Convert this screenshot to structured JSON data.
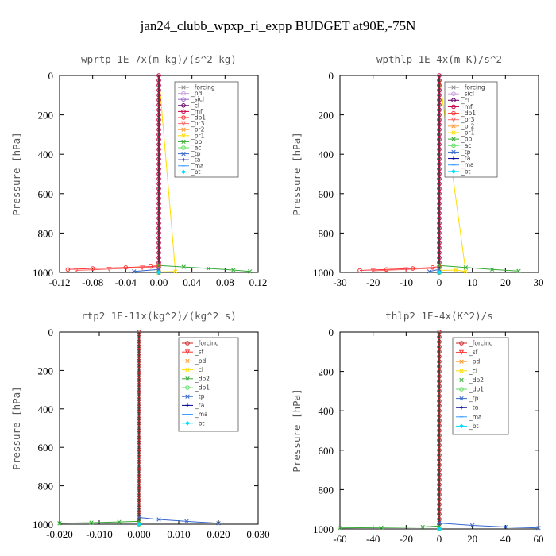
{
  "figure_title": "jan24_clubb_wpxp_ri_expp  BUDGET at90E,-75N",
  "chart_data": [
    {
      "type": "line",
      "title": "wprtp  1E-7x(m kg)/(s^2 kg)",
      "ylabel": "Pressure [hPa]",
      "xlim": [
        -0.12,
        0.12
      ],
      "ylim": [
        1000,
        0
      ],
      "xticks": [
        "-0.12",
        "-0.08",
        "-0.04",
        "0.00",
        "0.04",
        "0.08",
        "0.12"
      ],
      "xtick_values": [
        -0.12,
        -0.08,
        -0.04,
        0.0,
        0.04,
        0.08,
        0.12
      ],
      "yticks": [
        "0",
        "200",
        "400",
        "600",
        "800",
        "1000"
      ],
      "ytick_values": [
        0,
        200,
        400,
        600,
        800,
        1000
      ],
      "legend_position": "top-right",
      "series": [
        {
          "name": "_forcing",
          "color": "#888888",
          "marker": "x",
          "points": [
            [
              0.0,
              1000
            ],
            [
              0.0,
              980
            ],
            [
              0.0,
              0
            ]
          ]
        },
        {
          "name": "_pd",
          "color": "#c9a0dc",
          "marker": "o",
          "points": [
            [
              0.0,
              1000
            ],
            [
              0.0,
              0
            ]
          ]
        },
        {
          "name": "_sicl",
          "color": "#9966cc",
          "marker": "o",
          "points": [
            [
              0.0,
              1000
            ],
            [
              0.0,
              0
            ]
          ]
        },
        {
          "name": "_cl",
          "color": "#660066",
          "marker": "o",
          "points": [
            [
              0.0,
              1000
            ],
            [
              0.0,
              0
            ]
          ]
        },
        {
          "name": "_mfl",
          "color": "#cc0044",
          "marker": "o",
          "points": [
            [
              0.0,
              1000
            ],
            [
              0.0,
              0
            ]
          ]
        },
        {
          "name": "_dp1",
          "color": "#ff3333",
          "marker": "o",
          "points": [
            [
              -0.11,
              985
            ],
            [
              -0.08,
              980
            ],
            [
              -0.04,
              975
            ],
            [
              -0.01,
              970
            ],
            [
              0.0,
              965
            ],
            [
              0.0,
              0
            ]
          ]
        },
        {
          "name": "_pr3",
          "color": "#ff6666",
          "marker": "v",
          "points": [
            [
              -0.1,
              990
            ],
            [
              -0.06,
              983
            ],
            [
              -0.02,
              976
            ],
            [
              0.0,
              970
            ],
            [
              0.0,
              0
            ]
          ]
        },
        {
          "name": "_pr2",
          "color": "#ff9933",
          "marker": "x",
          "points": [
            [
              0.0,
              1000
            ],
            [
              0.0,
              0
            ]
          ]
        },
        {
          "name": "_pr1",
          "color": "#ffdd00",
          "marker": "x",
          "points": [
            [
              0.0,
              998
            ],
            [
              0.02,
              995
            ],
            [
              0.0,
              0
            ]
          ]
        },
        {
          "name": "_bp",
          "color": "#33aa33",
          "marker": "x",
          "points": [
            [
              0.0,
              965
            ],
            [
              0.03,
              972
            ],
            [
              0.06,
              980
            ],
            [
              0.09,
              988
            ],
            [
              0.11,
              995
            ]
          ]
        },
        {
          "name": "_ac",
          "color": "#66dd66",
          "marker": "o",
          "points": [
            [
              0.0,
              1000
            ],
            [
              0.0,
              0
            ]
          ]
        },
        {
          "name": "_tp",
          "color": "#3366cc",
          "marker": "x",
          "points": [
            [
              -0.03,
              995
            ],
            [
              0.0,
              985
            ],
            [
              0.0,
              0
            ]
          ]
        },
        {
          "name": "_ta",
          "color": "#000099",
          "marker": "+",
          "points": [
            [
              0.0,
              1000
            ],
            [
              0.0,
              0
            ]
          ]
        },
        {
          "name": "_ma",
          "color": "#3399ff",
          "marker": "-",
          "points": [
            [
              0.0,
              1000
            ],
            [
              0.0,
              0
            ]
          ]
        },
        {
          "name": "_bt",
          "color": "#00ddff",
          "marker": "D",
          "points": [
            [
              0.0,
              1000
            ],
            [
              0.0,
              0
            ]
          ]
        }
      ]
    },
    {
      "type": "line",
      "title": "wpthlp  1E-4x(m K)/s^2",
      "ylabel": "Pressure [hPa]",
      "xlim": [
        -30,
        30
      ],
      "ylim": [
        1000,
        0
      ],
      "xticks": [
        "-30",
        "-20",
        "-10",
        "0",
        "10",
        "20",
        "30"
      ],
      "xtick_values": [
        -30,
        -20,
        -10,
        0,
        10,
        20,
        30
      ],
      "yticks": [
        "0",
        "200",
        "400",
        "600",
        "800",
        "1000"
      ],
      "ytick_values": [
        0,
        200,
        400,
        600,
        800,
        1000
      ],
      "legend_position": "top-right",
      "series": [
        {
          "name": "_forcing",
          "color": "#888888",
          "marker": "x",
          "points": [
            [
              0,
              1000
            ],
            [
              0,
              0
            ]
          ]
        },
        {
          "name": "_sicl",
          "color": "#c9a0dc",
          "marker": "o",
          "points": [
            [
              0,
              1000
            ],
            [
              0,
              0
            ]
          ]
        },
        {
          "name": "_cl",
          "color": "#660066",
          "marker": "o",
          "points": [
            [
              0,
              1000
            ],
            [
              0,
              0
            ]
          ]
        },
        {
          "name": "_mfl",
          "color": "#cc0044",
          "marker": "o",
          "points": [
            [
              0,
              1000
            ],
            [
              0,
              0
            ]
          ]
        },
        {
          "name": "_dp1",
          "color": "#ff3333",
          "marker": "o",
          "points": [
            [
              -24,
              990
            ],
            [
              -16,
              985
            ],
            [
              -8,
              980
            ],
            [
              -2,
              975
            ],
            [
              0,
              970
            ],
            [
              0,
              0
            ]
          ]
        },
        {
          "name": "_pr3",
          "color": "#ff6666",
          "marker": "v",
          "points": [
            [
              -20,
              992
            ],
            [
              -10,
              985
            ],
            [
              0,
              978
            ],
            [
              0,
              0
            ]
          ]
        },
        {
          "name": "_pr2",
          "color": "#ff9933",
          "marker": "x",
          "points": [
            [
              0,
              1000
            ],
            [
              0,
              0
            ]
          ]
        },
        {
          "name": "_pr1",
          "color": "#ffdd00",
          "marker": "x",
          "points": [
            [
              0,
              990
            ],
            [
              5,
              988
            ],
            [
              8,
              995
            ],
            [
              0,
              0
            ]
          ]
        },
        {
          "name": "_bp",
          "color": "#33aa33",
          "marker": "x",
          "points": [
            [
              0,
              965
            ],
            [
              8,
              975
            ],
            [
              16,
              985
            ],
            [
              24,
              993
            ]
          ]
        },
        {
          "name": "_ac",
          "color": "#66dd66",
          "marker": "o",
          "points": [
            [
              0,
              1000
            ],
            [
              0,
              0
            ]
          ]
        },
        {
          "name": "_tp",
          "color": "#3366cc",
          "marker": "x",
          "points": [
            [
              -3,
              995
            ],
            [
              0,
              985
            ],
            [
              0,
              0
            ]
          ]
        },
        {
          "name": "_ta",
          "color": "#000099",
          "marker": "+",
          "points": [
            [
              0,
              1000
            ],
            [
              0,
              0
            ]
          ]
        },
        {
          "name": "_ma",
          "color": "#3399ff",
          "marker": "-",
          "points": [
            [
              0,
              1000
            ],
            [
              0,
              0
            ]
          ]
        },
        {
          "name": "_bt",
          "color": "#00ddff",
          "marker": "D",
          "points": [
            [
              0,
              1000
            ],
            [
              0,
              0
            ]
          ]
        }
      ]
    },
    {
      "type": "line",
      "title": "rtp2  1E-11x(kg^2)/(kg^2 s)",
      "ylabel": "Pressure [hPa]",
      "xlim": [
        -0.02,
        0.03
      ],
      "ylim": [
        1000,
        0
      ],
      "xticks": [
        "-0.020",
        "-0.010",
        "0.000",
        "0.010",
        "0.020",
        "0.030"
      ],
      "xtick_values": [
        -0.02,
        -0.01,
        0.0,
        0.01,
        0.02,
        0.03
      ],
      "yticks": [
        "0",
        "200",
        "400",
        "600",
        "800",
        "1000"
      ],
      "ytick_values": [
        0,
        200,
        400,
        600,
        800,
        1000
      ],
      "legend_position": "top-right",
      "series": [
        {
          "name": "_forcing",
          "color": "#cc2222",
          "marker": "o",
          "points": [
            [
              0.0,
              1000
            ],
            [
              0.0,
              0
            ]
          ]
        },
        {
          "name": "_sf",
          "color": "#ff3333",
          "marker": "v",
          "points": [
            [
              0.0,
              1000
            ],
            [
              0.0,
              0
            ]
          ]
        },
        {
          "name": "_pd",
          "color": "#ff9933",
          "marker": "x",
          "points": [
            [
              0.0,
              1000
            ],
            [
              0.0,
              0
            ]
          ]
        },
        {
          "name": "_cl",
          "color": "#ffdd00",
          "marker": "x",
          "points": [
            [
              0.0,
              1000
            ],
            [
              0.0,
              0
            ]
          ]
        },
        {
          "name": "_dp2",
          "color": "#33aa33",
          "marker": "x",
          "points": [
            [
              -0.02,
              995
            ],
            [
              -0.012,
              992
            ],
            [
              -0.005,
              988
            ],
            [
              0.0,
              985
            ],
            [
              0.0,
              0
            ]
          ]
        },
        {
          "name": "_dp1",
          "color": "#66dd66",
          "marker": "o",
          "points": [
            [
              0.0,
              1000
            ],
            [
              0.0,
              0
            ]
          ]
        },
        {
          "name": "_tp",
          "color": "#3366cc",
          "marker": "x",
          "points": [
            [
              0.0,
              965
            ],
            [
              0.005,
              975
            ],
            [
              0.012,
              985
            ],
            [
              0.02,
              995
            ]
          ]
        },
        {
          "name": "_ta",
          "color": "#000099",
          "marker": "+",
          "points": [
            [
              0.0,
              1000
            ],
            [
              0.0,
              0
            ]
          ]
        },
        {
          "name": "_ma",
          "color": "#3399ff",
          "marker": "-",
          "points": [
            [
              0.0,
              1000
            ],
            [
              0.0,
              0
            ]
          ]
        },
        {
          "name": "_bt",
          "color": "#00ddff",
          "marker": "D",
          "points": [
            [
              0.0,
              1000
            ],
            [
              0.0,
              0
            ]
          ]
        }
      ]
    },
    {
      "type": "line",
      "title": "thlp2  1E-4x(K^2)/s",
      "ylabel": "Pressure [hPa]",
      "xlim": [
        -60,
        60
      ],
      "ylim": [
        1000,
        0
      ],
      "xticks": [
        "-60",
        "-40",
        "-20",
        "0",
        "20",
        "40",
        "60"
      ],
      "xtick_values": [
        -60,
        -40,
        -20,
        0,
        20,
        40,
        60
      ],
      "yticks": [
        "0",
        "200",
        "400",
        "600",
        "800",
        "1000"
      ],
      "ytick_values": [
        0,
        200,
        400,
        600,
        800,
        1000
      ],
      "legend_position": "top-right",
      "series": [
        {
          "name": "_forcing",
          "color": "#cc2222",
          "marker": "o",
          "points": [
            [
              0,
              1000
            ],
            [
              0,
              0
            ]
          ]
        },
        {
          "name": "_sf",
          "color": "#ff3333",
          "marker": "v",
          "points": [
            [
              0,
              1000
            ],
            [
              0,
              0
            ]
          ]
        },
        {
          "name": "_pd",
          "color": "#ff9933",
          "marker": "x",
          "points": [
            [
              0,
              1000
            ],
            [
              0,
              0
            ]
          ]
        },
        {
          "name": "_cl",
          "color": "#ffdd00",
          "marker": "x",
          "points": [
            [
              0,
              1000
            ],
            [
              0,
              0
            ]
          ]
        },
        {
          "name": "_dp2",
          "color": "#33aa33",
          "marker": "x",
          "points": [
            [
              -60,
              995
            ],
            [
              -35,
              993
            ],
            [
              -10,
              990
            ],
            [
              0,
              985
            ],
            [
              0,
              0
            ]
          ]
        },
        {
          "name": "_dp1",
          "color": "#66dd66",
          "marker": "o",
          "points": [
            [
              0,
              1000
            ],
            [
              0,
              0
            ]
          ]
        },
        {
          "name": "_tp",
          "color": "#3366cc",
          "marker": "x",
          "points": [
            [
              0,
              970
            ],
            [
              20,
              982
            ],
            [
              40,
              990
            ],
            [
              60,
              995
            ]
          ]
        },
        {
          "name": "_ta",
          "color": "#000099",
          "marker": "+",
          "points": [
            [
              0,
              1000
            ],
            [
              0,
              0
            ]
          ]
        },
        {
          "name": "_ma",
          "color": "#3399ff",
          "marker": "-",
          "points": [
            [
              0,
              1000
            ],
            [
              0,
              0
            ]
          ]
        },
        {
          "name": "_bt",
          "color": "#00ddff",
          "marker": "D",
          "points": [
            [
              0,
              1000
            ],
            [
              0,
              0
            ]
          ]
        }
      ]
    }
  ]
}
